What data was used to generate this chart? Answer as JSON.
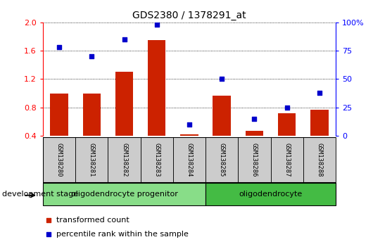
{
  "title": "GDS2380 / 1378291_at",
  "samples": [
    "GSM138280",
    "GSM138281",
    "GSM138282",
    "GSM138283",
    "GSM138284",
    "GSM138285",
    "GSM138286",
    "GSM138287",
    "GSM138288"
  ],
  "bar_values": [
    1.0,
    1.0,
    1.3,
    1.75,
    0.42,
    0.97,
    0.47,
    0.72,
    0.77
  ],
  "dot_values": [
    78,
    70,
    85,
    98,
    10,
    50,
    15,
    25,
    38
  ],
  "bar_color": "#cc2200",
  "dot_color": "#0000cc",
  "ylim_left": [
    0.4,
    2.0
  ],
  "ylim_right": [
    0,
    100
  ],
  "yticks_left": [
    0.4,
    0.8,
    1.2,
    1.6,
    2.0
  ],
  "yticks_right": [
    0,
    25,
    50,
    75,
    100
  ],
  "ytick_labels_right": [
    "0",
    "25",
    "50",
    "75",
    "100%"
  ],
  "groups": [
    {
      "label": "oligodendrocyte progenitor",
      "start": 0,
      "end": 4,
      "color": "#88dd88"
    },
    {
      "label": "oligodendrocyte",
      "start": 5,
      "end": 8,
      "color": "#44bb44"
    }
  ],
  "dev_stage_label": "development stage",
  "legend_bar_label": "transformed count",
  "legend_dot_label": "percentile rank within the sample",
  "sample_box_color": "#cccccc",
  "bar_bottom": 0.4
}
